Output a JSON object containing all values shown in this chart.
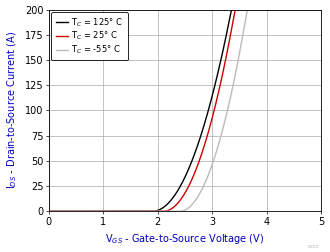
{
  "xlabel": "V$_{GS}$ - Gate-to-Source Voltage (V)",
  "ylabel": "I$_{DS}$ - Drain-to-Source Current (A)",
  "xlim": [
    0,
    5
  ],
  "ylim": [
    0,
    200
  ],
  "xticks": [
    0,
    1,
    2,
    3,
    4,
    5
  ],
  "yticks": [
    0,
    25,
    50,
    75,
    100,
    125,
    150,
    175,
    200
  ],
  "legend": [
    {
      "label": "T$_C$ = 125° C",
      "color": "#000000"
    },
    {
      "label": "T$_C$ = 25° C",
      "color": "#cc0000"
    },
    {
      "label": "T$_C$ = -55° C",
      "color": "#bbbbbb"
    }
  ],
  "curves": {
    "T125": {
      "color": "#000000",
      "Vth": 1.9,
      "k": 95.0
    },
    "T25": {
      "color": "#cc0000",
      "Vth": 2.1,
      "k": 115.0
    },
    "T55": {
      "color": "#bbbbbb",
      "Vth": 2.4,
      "k": 130.0
    }
  },
  "background_color": "#ffffff",
  "grid_color": "#aaaaaa",
  "label_color": "#0000bb",
  "tick_fontsize": 7,
  "label_fontsize": 7
}
